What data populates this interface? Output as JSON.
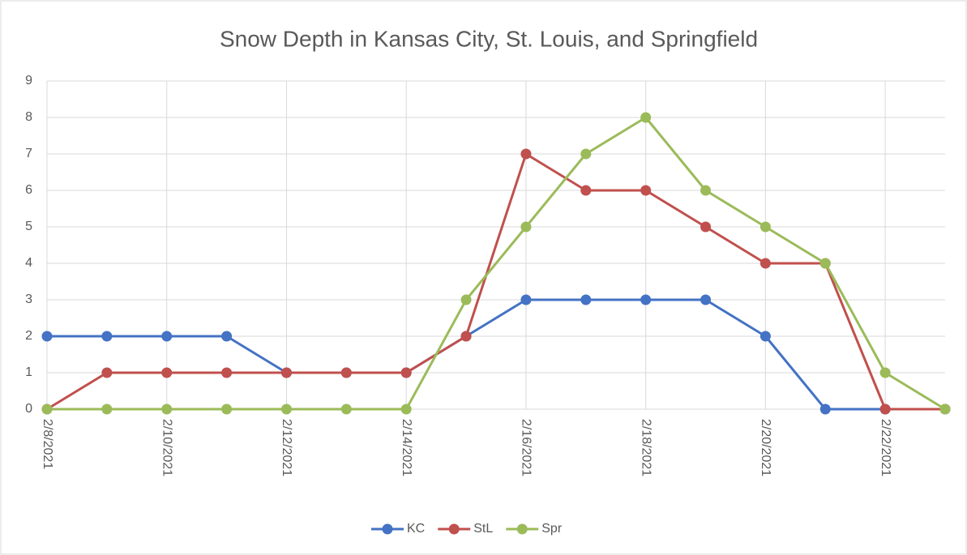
{
  "chart_data": {
    "type": "line",
    "title": "Snow Depth in Kansas City, St. Louis, and Springfield",
    "categories": [
      "2/8/2021",
      null,
      "2/10/2021",
      null,
      "2/12/2021",
      null,
      "2/14/2021",
      null,
      "2/16/2021",
      null,
      "2/18/2021",
      null,
      "2/20/2021",
      null,
      "2/22/2021",
      null
    ],
    "series": [
      {
        "name": "KC",
        "color": "#4472c4",
        "values": [
          2,
          2,
          2,
          2,
          1,
          1,
          1,
          2,
          3,
          3,
          3,
          3,
          2,
          0,
          0,
          0
        ]
      },
      {
        "name": "StL",
        "color": "#c0504d",
        "values": [
          0,
          1,
          1,
          1,
          1,
          1,
          1,
          2,
          7,
          6,
          6,
          5,
          4,
          4,
          0,
          0
        ]
      },
      {
        "name": "Spr",
        "color": "#9bbb59",
        "values": [
          0,
          0,
          0,
          0,
          0,
          0,
          0,
          3,
          5,
          7,
          8,
          6,
          5,
          4,
          1,
          0
        ]
      }
    ],
    "ylim": [
      0,
      9
    ],
    "yticks": [
      0,
      1,
      2,
      3,
      4,
      5,
      6,
      7,
      8,
      9
    ],
    "grid": true,
    "legend": "bottom"
  }
}
